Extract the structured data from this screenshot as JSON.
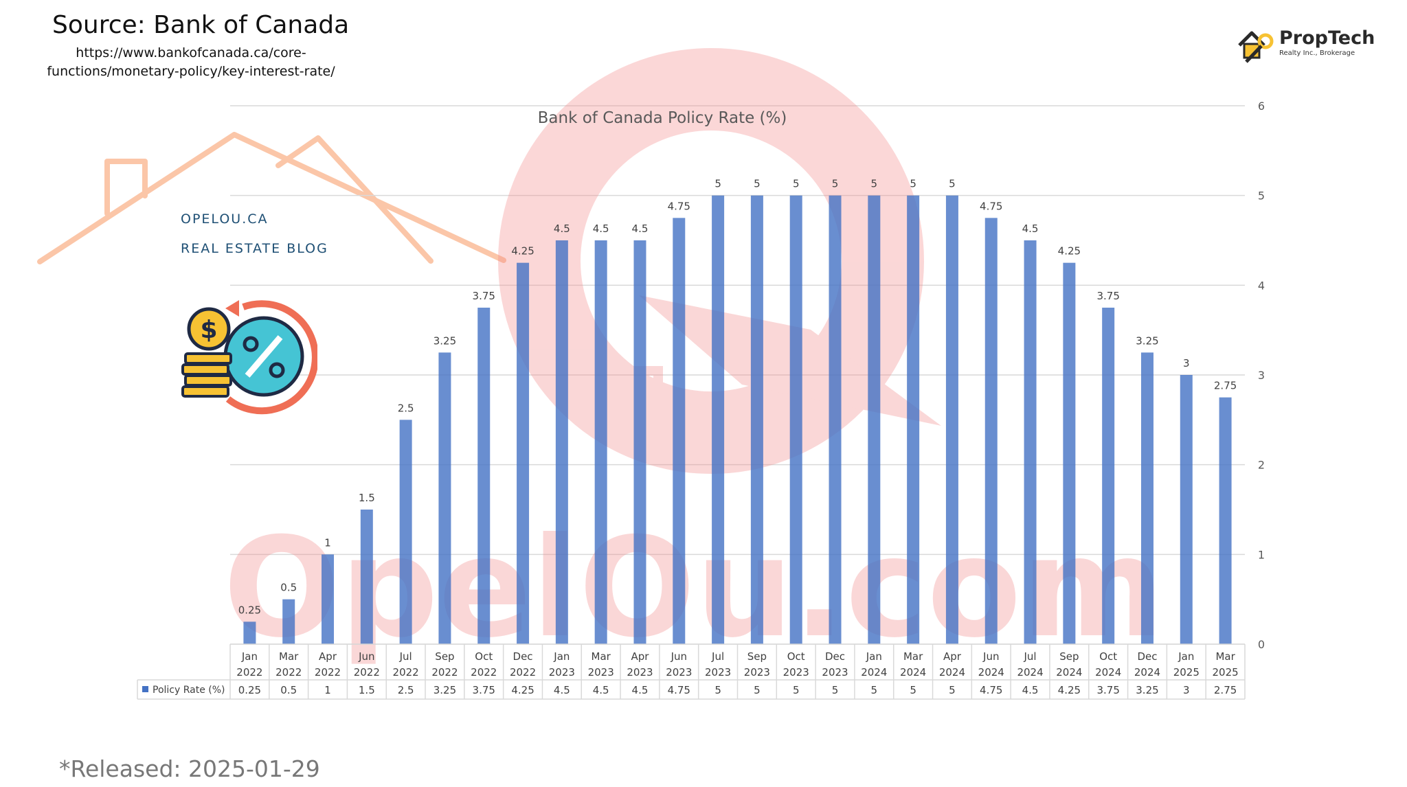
{
  "header": {
    "source_title": "Source: Bank of Canada",
    "source_url": "https://www.bankofcanada.ca/core-functions/monetary-policy/key-interest-rate/"
  },
  "blog": {
    "site": "OPELOU.CA",
    "tagline": "REAL ESTATE BLOG"
  },
  "logo": {
    "name": "PropTech",
    "subtitle": "Realty Inc., Brokerage"
  },
  "footer": {
    "released": "*Released: 2025-01-29"
  },
  "watermark": {
    "text": "OpelOu.com"
  },
  "colors": {
    "bar": "#4472c4",
    "grid": "#d9d9d9",
    "watermark": "#f28b8b",
    "roof": "#fbc6a8"
  },
  "chart_data": {
    "type": "bar",
    "title": "Bank of Canada Policy Rate (%)",
    "categories": [
      [
        "Jan",
        "2022"
      ],
      [
        "Mar",
        "2022"
      ],
      [
        "Apr",
        "2022"
      ],
      [
        "Jun",
        "2022"
      ],
      [
        "Jul",
        "2022"
      ],
      [
        "Sep",
        "2022"
      ],
      [
        "Oct",
        "2022"
      ],
      [
        "Dec",
        "2022"
      ],
      [
        "Jan",
        "2023"
      ],
      [
        "Mar",
        "2023"
      ],
      [
        "Apr",
        "2023"
      ],
      [
        "Jun",
        "2023"
      ],
      [
        "Jul",
        "2023"
      ],
      [
        "Sep",
        "2023"
      ],
      [
        "Oct",
        "2023"
      ],
      [
        "Dec",
        "2023"
      ],
      [
        "Jan",
        "2024"
      ],
      [
        "Mar",
        "2024"
      ],
      [
        "Apr",
        "2024"
      ],
      [
        "Jun",
        "2024"
      ],
      [
        "Jul",
        "2024"
      ],
      [
        "Sep",
        "2024"
      ],
      [
        "Oct",
        "2024"
      ],
      [
        "Dec",
        "2024"
      ],
      [
        "Jan",
        "2025"
      ],
      [
        "Mar",
        "2025"
      ]
    ],
    "series": [
      {
        "name": "Policy Rate (%)",
        "values": [
          0.25,
          0.5,
          1,
          1.5,
          2.5,
          3.25,
          3.75,
          4.25,
          4.5,
          4.5,
          4.5,
          4.75,
          5,
          5,
          5,
          5,
          5,
          5,
          5,
          4.75,
          4.5,
          4.25,
          3.75,
          3.25,
          3,
          2.75
        ]
      }
    ],
    "ylim": [
      0,
      6
    ],
    "yticks": [
      0,
      1,
      2,
      3,
      4,
      5,
      6
    ],
    "y_axis_side": "right",
    "grid": true,
    "data_table": true
  }
}
